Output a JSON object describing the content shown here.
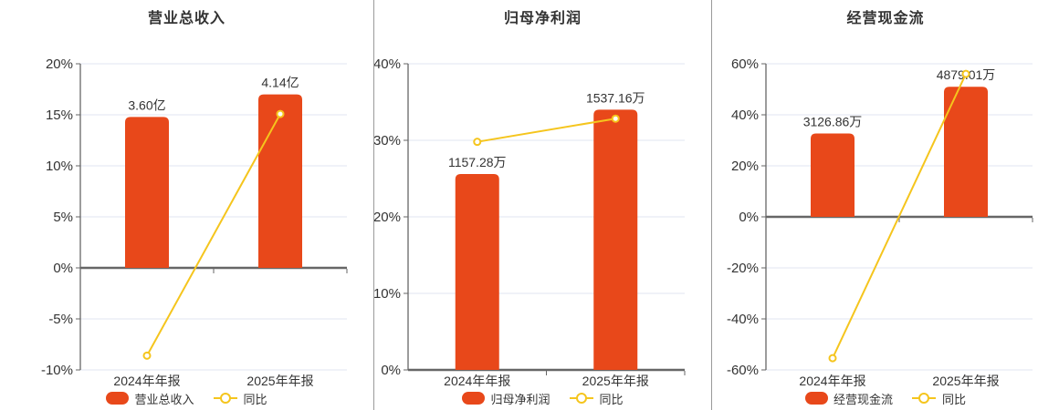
{
  "colors": {
    "bar": "#E8481A",
    "line": "#F5C51D",
    "grid": "#E2E6F0",
    "axis": "#666666",
    "text": "#333333",
    "separator": "#9A9A9A",
    "background": "#FFFFFF"
  },
  "chart_data": [
    {
      "type": "bar",
      "overlay": "line",
      "title": "营业总收入",
      "categories": [
        "2024年年报",
        "2025年年报"
      ],
      "bars": {
        "name": "营业总收入",
        "unit": "亿",
        "values": [
          3.6,
          4.14
        ],
        "labels": [
          "3.60亿",
          "4.14亿"
        ]
      },
      "line": {
        "name": "同比",
        "unit": "%",
        "values": [
          -8.6,
          15.08
        ]
      },
      "y_axis": {
        "min": -10,
        "max": 20,
        "step": 5,
        "unit": "%",
        "tick_labels": [
          "20%",
          "15%",
          "10%",
          "5%",
          "0%",
          "-5%",
          "-10%"
        ]
      },
      "legend_position": "bottom",
      "grid": true
    },
    {
      "type": "bar",
      "overlay": "line",
      "title": "归母净利润",
      "categories": [
        "2024年年报",
        "2025年年报"
      ],
      "bars": {
        "name": "归母净利润",
        "unit": "万",
        "values": [
          1157.28,
          1537.16
        ],
        "labels": [
          "1157.28万",
          "1537.16万"
        ]
      },
      "line": {
        "name": "同比",
        "unit": "%",
        "values": [
          29.8,
          32.83
        ]
      },
      "y_axis": {
        "min": 0,
        "max": 40,
        "step": 10,
        "unit": "%",
        "tick_labels": [
          "40%",
          "30%",
          "20%",
          "10%",
          "0%"
        ]
      },
      "legend_position": "bottom",
      "grid": true
    },
    {
      "type": "bar",
      "overlay": "line",
      "title": "经营现金流",
      "categories": [
        "2024年年报",
        "2025年年报"
      ],
      "bars": {
        "name": "经营现金流",
        "unit": "万",
        "values": [
          3126.86,
          4879.01
        ],
        "labels": [
          "3126.86万",
          "4879.01万"
        ]
      },
      "line": {
        "name": "同比",
        "unit": "%",
        "values": [
          -55.4,
          56.04
        ]
      },
      "y_axis": {
        "min": -60,
        "max": 60,
        "step": 20,
        "unit": "%",
        "tick_labels": [
          "60%",
          "40%",
          "20%",
          "0%",
          "-20%",
          "-40%",
          "-60%"
        ]
      },
      "legend_position": "bottom",
      "grid": true
    }
  ]
}
